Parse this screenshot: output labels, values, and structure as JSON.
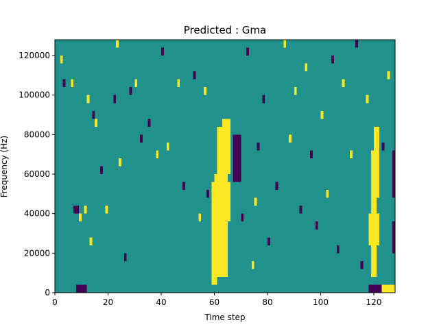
{
  "chart_data": {
    "type": "heatmap",
    "title": "Predicted : Gma",
    "xlabel": "Time step",
    "ylabel": "Frequency (Hz)",
    "xlim": [
      0,
      128
    ],
    "ylim": [
      0,
      128000
    ],
    "x_ticks": [
      0,
      20,
      40,
      60,
      80,
      100,
      120
    ],
    "y_ticks": [
      0,
      20000,
      40000,
      60000,
      80000,
      100000,
      120000
    ],
    "x_tick_labels": [
      "0",
      "20",
      "40",
      "60",
      "80",
      "100",
      "120"
    ],
    "y_tick_labels": [
      "0",
      "20000",
      "40000",
      "60000",
      "80000",
      "100000",
      "120000"
    ],
    "grid": false,
    "colormap": "viridis",
    "colors": {
      "low": "#440154",
      "mid": "#21918c",
      "high": "#fde725"
    },
    "background_value": "mid",
    "n_time_steps": 128,
    "n_freq_bins": 32,
    "bands": [
      {
        "value": "high",
        "t_start": 59,
        "t_end": 61,
        "f_start": 4000,
        "f_end": 56000
      },
      {
        "value": "high",
        "t_start": 60,
        "t_end": 63,
        "f_start": 16000,
        "f_end": 60000
      },
      {
        "value": "high",
        "t_start": 61,
        "t_end": 65,
        "f_start": 8000,
        "f_end": 84000
      },
      {
        "value": "high",
        "t_start": 63,
        "t_end": 66,
        "f_start": 60000,
        "f_end": 88000
      },
      {
        "value": "high",
        "t_start": 64,
        "t_end": 66,
        "f_start": 36000,
        "f_end": 56000
      },
      {
        "value": "high",
        "t_start": 119,
        "t_end": 121,
        "f_start": 8000,
        "f_end": 72000
      },
      {
        "value": "high",
        "t_start": 118,
        "t_end": 122,
        "f_start": 24000,
        "f_end": 40000
      },
      {
        "value": "high",
        "t_start": 120,
        "t_end": 122,
        "f_start": 48000,
        "f_end": 84000
      },
      {
        "value": "high",
        "t_start": 123,
        "t_end": 128,
        "f_start": 0,
        "f_end": 4000
      },
      {
        "value": "low",
        "t_start": 118,
        "t_end": 123,
        "f_start": 0,
        "f_end": 4000
      },
      {
        "value": "low",
        "t_start": 127,
        "t_end": 128,
        "f_start": 20000,
        "f_end": 36000
      },
      {
        "value": "low",
        "t_start": 127,
        "t_end": 128,
        "f_start": 48000,
        "f_end": 72000
      },
      {
        "value": "low",
        "t_start": 67,
        "t_end": 70,
        "f_start": 56000,
        "f_end": 80000
      },
      {
        "value": "low",
        "t_start": 8,
        "t_end": 12,
        "f_start": 0,
        "f_end": 4000
      }
    ],
    "cells": [
      {
        "t": 2,
        "f_bin": 29,
        "value": "high"
      },
      {
        "t": 3,
        "f_bin": 26,
        "value": "low"
      },
      {
        "t": 6,
        "f_bin": 26,
        "value": "high"
      },
      {
        "t": 7,
        "f_bin": 10,
        "value": "low"
      },
      {
        "t": 8,
        "f_bin": 10,
        "value": "low"
      },
      {
        "t": 9,
        "f_bin": 9,
        "value": "high"
      },
      {
        "t": 11,
        "f_bin": 10,
        "value": "high"
      },
      {
        "t": 12,
        "f_bin": 24,
        "value": "high"
      },
      {
        "t": 13,
        "f_bin": 6,
        "value": "high"
      },
      {
        "t": 14,
        "f_bin": 22,
        "value": "low"
      },
      {
        "t": 15,
        "f_bin": 21,
        "value": "high"
      },
      {
        "t": 17,
        "f_bin": 15,
        "value": "low"
      },
      {
        "t": 19,
        "f_bin": 10,
        "value": "high"
      },
      {
        "t": 22,
        "f_bin": 24,
        "value": "low"
      },
      {
        "t": 23,
        "f_bin": 31,
        "value": "high"
      },
      {
        "t": 24,
        "f_bin": 16,
        "value": "high"
      },
      {
        "t": 26,
        "f_bin": 4,
        "value": "low"
      },
      {
        "t": 28,
        "f_bin": 25,
        "value": "low"
      },
      {
        "t": 30,
        "f_bin": 26,
        "value": "high"
      },
      {
        "t": 32,
        "f_bin": 19,
        "value": "low"
      },
      {
        "t": 35,
        "f_bin": 21,
        "value": "low"
      },
      {
        "t": 38,
        "f_bin": 17,
        "value": "high"
      },
      {
        "t": 40,
        "f_bin": 30,
        "value": "low"
      },
      {
        "t": 42,
        "f_bin": 18,
        "value": "high"
      },
      {
        "t": 46,
        "f_bin": 26,
        "value": "high"
      },
      {
        "t": 48,
        "f_bin": 13,
        "value": "low"
      },
      {
        "t": 52,
        "f_bin": 27,
        "value": "low"
      },
      {
        "t": 54,
        "f_bin": 9,
        "value": "high"
      },
      {
        "t": 56,
        "f_bin": 25,
        "value": "high"
      },
      {
        "t": 57,
        "f_bin": 12,
        "value": "low"
      },
      {
        "t": 70,
        "f_bin": 9,
        "value": "low"
      },
      {
        "t": 72,
        "f_bin": 30,
        "value": "low"
      },
      {
        "t": 74,
        "f_bin": 3,
        "value": "high"
      },
      {
        "t": 75,
        "f_bin": 11,
        "value": "high"
      },
      {
        "t": 76,
        "f_bin": 18,
        "value": "low"
      },
      {
        "t": 78,
        "f_bin": 24,
        "value": "low"
      },
      {
        "t": 80,
        "f_bin": 6,
        "value": "low"
      },
      {
        "t": 83,
        "f_bin": 13,
        "value": "low"
      },
      {
        "t": 86,
        "f_bin": 31,
        "value": "high"
      },
      {
        "t": 88,
        "f_bin": 19,
        "value": "high"
      },
      {
        "t": 90,
        "f_bin": 25,
        "value": "high"
      },
      {
        "t": 92,
        "f_bin": 10,
        "value": "low"
      },
      {
        "t": 94,
        "f_bin": 28,
        "value": "high"
      },
      {
        "t": 96,
        "f_bin": 17,
        "value": "low"
      },
      {
        "t": 98,
        "f_bin": 8,
        "value": "low"
      },
      {
        "t": 100,
        "f_bin": 22,
        "value": "high"
      },
      {
        "t": 102,
        "f_bin": 12,
        "value": "high"
      },
      {
        "t": 104,
        "f_bin": 29,
        "value": "low"
      },
      {
        "t": 106,
        "f_bin": 5,
        "value": "low"
      },
      {
        "t": 108,
        "f_bin": 26,
        "value": "high"
      },
      {
        "t": 111,
        "f_bin": 17,
        "value": "high"
      },
      {
        "t": 113,
        "f_bin": 31,
        "value": "low"
      },
      {
        "t": 115,
        "f_bin": 3,
        "value": "low"
      },
      {
        "t": 117,
        "f_bin": 24,
        "value": "high"
      },
      {
        "t": 123,
        "f_bin": 18,
        "value": "low"
      },
      {
        "t": 125,
        "f_bin": 27,
        "value": "high"
      }
    ]
  }
}
